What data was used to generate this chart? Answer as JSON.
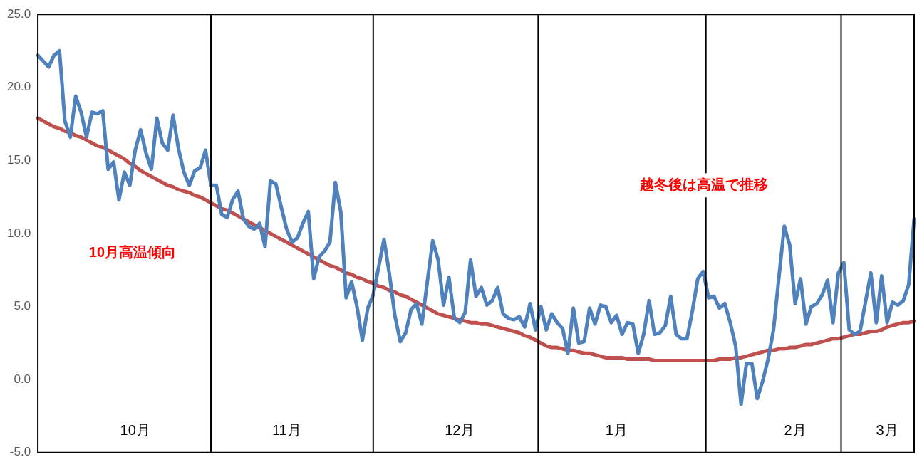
{
  "chart_data": {
    "type": "line",
    "categories": [
      null,
      null,
      null,
      null,
      null,
      null,
      null,
      null,
      null,
      null,
      null,
      null,
      null,
      null,
      null,
      null,
      null,
      null,
      "10月",
      null,
      null,
      null,
      null,
      null,
      null,
      null,
      null,
      null,
      null,
      null,
      null,
      null,
      null,
      null,
      null,
      null,
      null,
      null,
      null,
      null,
      null,
      null,
      null,
      null,
      null,
      null,
      "11月",
      null,
      null,
      null,
      null,
      null,
      null,
      null,
      null,
      null,
      null,
      null,
      null,
      null,
      null,
      null,
      null,
      null,
      null,
      null,
      null,
      null,
      null,
      null,
      null,
      null,
      null,
      null,
      null,
      null,
      null,
      null,
      "12月",
      null,
      null,
      null,
      null,
      null,
      null,
      null,
      null,
      null,
      null,
      null,
      null,
      null,
      null,
      null,
      null,
      null,
      null,
      null,
      null,
      null,
      null,
      null,
      null,
      null,
      null,
      null,
      null,
      "1月",
      null,
      null,
      null,
      null,
      null,
      null,
      null,
      null,
      null,
      null,
      null,
      null,
      null,
      null,
      null,
      null,
      null,
      null,
      null,
      null,
      null,
      null,
      null,
      null,
      null,
      null,
      null,
      null,
      null,
      null,
      null,
      null,
      "2月",
      null,
      null,
      null,
      null,
      null,
      null,
      null,
      null,
      null,
      null,
      null,
      null,
      null,
      null,
      null,
      null,
      "3月",
      null,
      null,
      null,
      null,
      null
    ],
    "series": [
      {
        "color": "#4f81bd",
        "values": [
          22.2,
          21.8,
          21.4,
          22.2,
          22.5,
          17.7,
          16.6,
          19.4,
          18.3,
          16.6,
          18.3,
          18.2,
          18.4,
          14.4,
          14.9,
          12.3,
          14.2,
          13.3,
          15.7,
          17.1,
          15.5,
          14.4,
          17.9,
          16.2,
          15.7,
          18.1,
          15.8,
          14.2,
          13.3,
          14.3,
          14.5,
          15.7,
          13.3,
          13.3,
          11.3,
          11.1,
          12.3,
          12.9,
          11.0,
          10.5,
          10.3,
          10.7,
          9.1,
          13.6,
          13.4,
          11.8,
          10.3,
          9.4,
          9.7,
          10.7,
          11.5,
          6.9,
          8.4,
          8.8,
          9.4,
          13.5,
          11.5,
          5.6,
          6.7,
          5.0,
          2.7,
          4.9,
          5.8,
          7.7,
          9.6,
          7.2,
          4.4,
          2.6,
          3.2,
          4.8,
          5.2,
          3.8,
          6.7,
          9.5,
          8.2,
          5.1,
          7.0,
          4.2,
          3.9,
          4.6,
          8.2,
          5.7,
          6.3,
          5.1,
          5.4,
          6.3,
          4.5,
          4.2,
          4.1,
          4.3,
          3.6,
          5.2,
          3.4,
          5.0,
          3.4,
          4.5,
          3.9,
          3.5,
          1.8,
          4.9,
          2.5,
          2.6,
          4.9,
          3.8,
          5.1,
          5.0,
          3.9,
          4.4,
          3.1,
          3.9,
          3.8,
          1.8,
          3.1,
          5.4,
          3.1,
          3.2,
          3.7,
          5.7,
          3.1,
          2.8,
          2.8,
          4.7,
          6.9,
          7.4,
          5.6,
          5.7,
          4.9,
          5.2,
          3.9,
          2.3,
          -1.7,
          1.1,
          1.1,
          -1.3,
          -0.1,
          1.4,
          3.4,
          7.0,
          10.5,
          9.2,
          5.2,
          6.9,
          3.8,
          5.0,
          5.2,
          5.8,
          6.8,
          3.9,
          7.3,
          8.0,
          3.4,
          3.1,
          3.3,
          5.3,
          7.3,
          3.9,
          7.1,
          3.9,
          5.3,
          5.1,
          5.4,
          6.5,
          11.0
        ]
      },
      {
        "color": "#c0504d",
        "values": [
          17.9,
          17.7,
          17.5,
          17.3,
          17.2,
          17.0,
          16.9,
          16.7,
          16.6,
          16.4,
          16.2,
          16.0,
          15.9,
          15.7,
          15.5,
          15.3,
          15.1,
          14.8,
          14.6,
          14.3,
          14.1,
          13.9,
          13.7,
          13.5,
          13.3,
          13.2,
          13.0,
          12.9,
          12.8,
          12.6,
          12.5,
          12.3,
          12.1,
          11.9,
          11.7,
          11.6,
          11.4,
          11.2,
          11.0,
          10.8,
          10.6,
          10.4,
          10.2,
          10.0,
          9.8,
          9.6,
          9.4,
          9.2,
          9.0,
          8.8,
          8.6,
          8.4,
          8.2,
          8.0,
          7.8,
          7.7,
          7.5,
          7.3,
          7.2,
          7.0,
          6.9,
          6.7,
          6.6,
          6.4,
          6.3,
          6.1,
          6.0,
          5.8,
          5.7,
          5.5,
          5.3,
          5.1,
          4.9,
          4.7,
          4.5,
          4.4,
          4.3,
          4.2,
          4.1,
          4.0,
          3.9,
          3.9,
          3.8,
          3.8,
          3.7,
          3.6,
          3.5,
          3.4,
          3.3,
          3.2,
          3.0,
          2.9,
          2.7,
          2.5,
          2.3,
          2.2,
          2.2,
          2.1,
          2.0,
          2.0,
          1.9,
          1.8,
          1.8,
          1.7,
          1.6,
          1.5,
          1.5,
          1.5,
          1.5,
          1.4,
          1.4,
          1.4,
          1.4,
          1.4,
          1.3,
          1.3,
          1.3,
          1.3,
          1.3,
          1.3,
          1.3,
          1.3,
          1.3,
          1.3,
          1.3,
          1.3,
          1.4,
          1.4,
          1.4,
          1.5,
          1.5,
          1.6,
          1.7,
          1.8,
          1.9,
          2.0,
          2.0,
          2.1,
          2.1,
          2.2,
          2.2,
          2.3,
          2.4,
          2.4,
          2.5,
          2.6,
          2.7,
          2.8,
          2.8,
          2.9,
          3.0,
          3.1,
          3.1,
          3.2,
          3.3,
          3.3,
          3.4,
          3.6,
          3.7,
          3.8,
          3.9,
          3.9,
          4.0
        ]
      }
    ],
    "ylim": [
      -5,
      25
    ],
    "yticks": [
      {
        "value": -5,
        "label": "-5.0"
      },
      {
        "value": 0,
        "label": "0.0"
      },
      {
        "value": 5,
        "label": "5.0"
      },
      {
        "value": 10,
        "label": "10.0"
      },
      {
        "value": 15,
        "label": "15.0"
      },
      {
        "value": 20,
        "label": "20.0"
      },
      {
        "value": 25,
        "label": "25.0"
      }
    ],
    "annotations": [
      "10月高温傾向",
      "越冬後は高温で推移"
    ]
  }
}
